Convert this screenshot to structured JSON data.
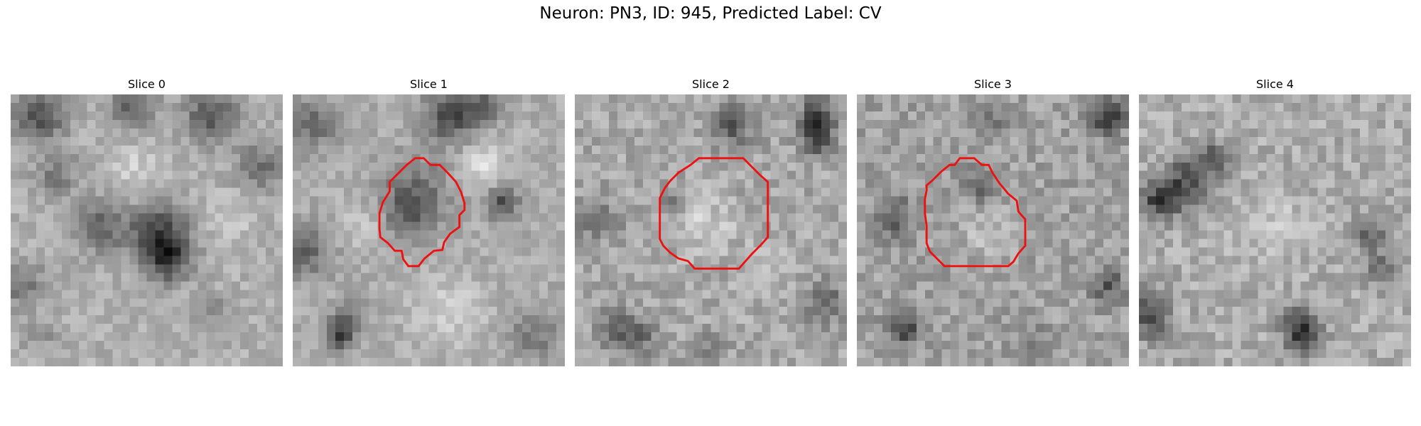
{
  "figure": {
    "title": "Neuron: PN3, ID: 945, Predicted Label: CV"
  },
  "outline_color": "#ee1111",
  "slices": [
    {
      "label": "Slice 0",
      "has_outline": false
    },
    {
      "label": "Slice 1",
      "has_outline": true
    },
    {
      "label": "Slice 2",
      "has_outline": true
    },
    {
      "label": "Slice 3",
      "has_outline": true
    },
    {
      "label": "Slice 4",
      "has_outline": false
    }
  ]
}
